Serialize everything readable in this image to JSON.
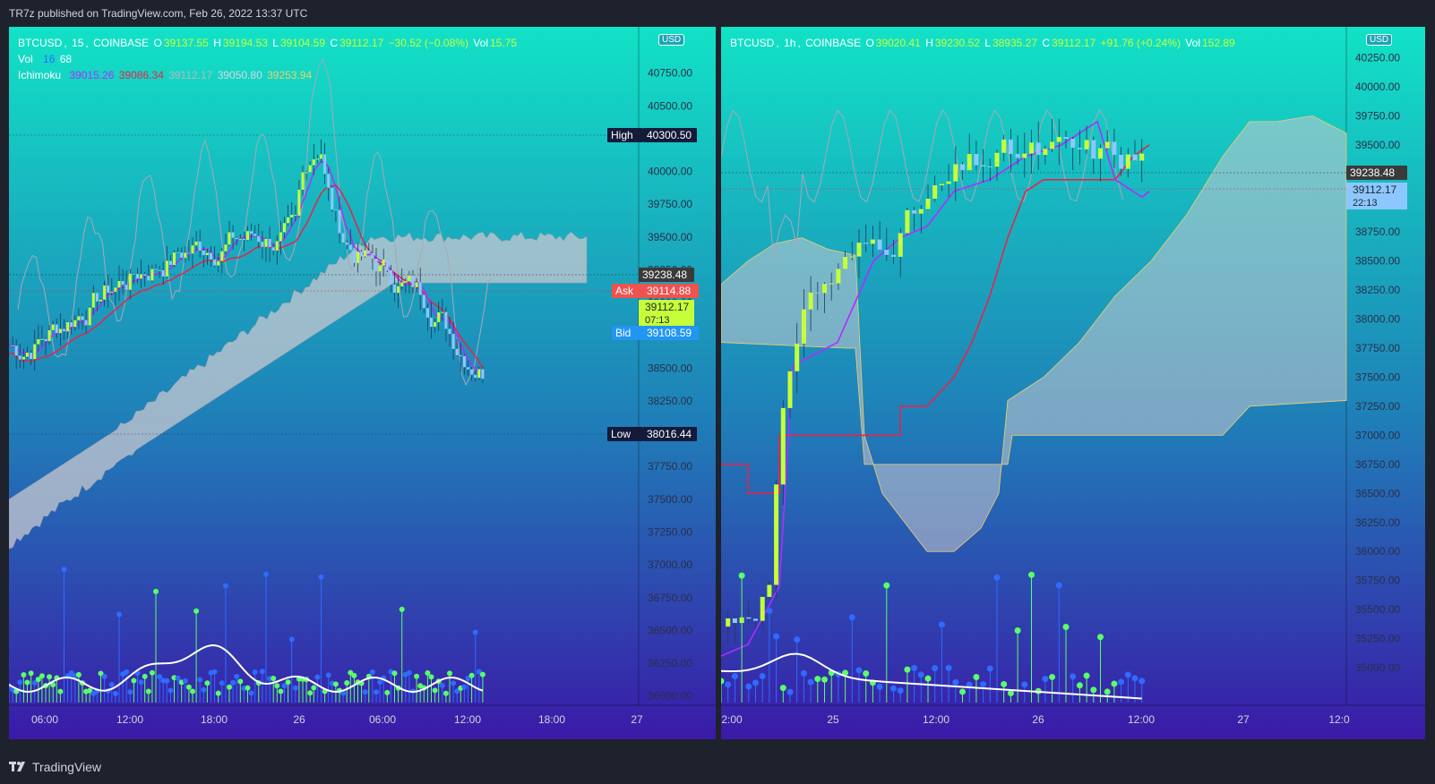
{
  "header": {
    "published": "TR7z published on TradingView.com, Feb 26, 2022 13:37 UTC"
  },
  "footer": {
    "brand": "TradingView",
    "logo_icon": "tradingview-logo-icon"
  },
  "colors": {
    "bg_top": "#12e2c6",
    "bg_bottom": "#3a1aa8",
    "bull": "#c6ff3a",
    "bear": "#8cc8ff",
    "conversion": "#b12cff",
    "base": "#e8234a",
    "lagging": "#a8a8b8",
    "cloud": "#c8c8d0",
    "volume_ma": "#ffffff",
    "vol_green": "#5aff6a",
    "vol_blue": "#2f6bff"
  },
  "left_chart": {
    "symbol": "BTCUSD",
    "interval": "15",
    "exchange": "COINBASE",
    "ohlc": {
      "o_label": "O",
      "o": "39137.55",
      "h_label": "H",
      "h": "39194.53",
      "l_label": "L",
      "l": "39104.59",
      "c_label": "C",
      "c": "39112.17",
      "change": "−30.52 (−0.08%)"
    },
    "vol": {
      "label": "Vol",
      "value": "15.75"
    },
    "vol_indicator": {
      "label": "Vol",
      "p1": "16",
      "p2": "68"
    },
    "ichimoku": {
      "label": "Ichimoku",
      "v1": "39015.26",
      "v2": "39086.34",
      "v3": "39112.17",
      "v4": "39050.80",
      "v5": "39253.94"
    },
    "currency": "USD",
    "price_ticks": [
      "40750.00",
      "40500.00",
      "40250.00",
      "40000.00",
      "39750.00",
      "39500.00",
      "39250.00",
      "39000.00",
      "38750.00",
      "38500.00",
      "38250.00",
      "38000.00",
      "37750.00",
      "37500.00",
      "37250.00",
      "37000.00",
      "36750.00",
      "36500.00",
      "36250.00",
      "36000.00"
    ],
    "time_ticks": [
      "06:00",
      "12:00",
      "18:00",
      "26",
      "06:00",
      "12:00",
      "18:00",
      "27"
    ],
    "markers": {
      "high": {
        "label": "High",
        "value": "40300.50"
      },
      "low": {
        "label": "Low",
        "value": "38016.44"
      },
      "ask": {
        "label": "Ask",
        "value": "39114.88"
      },
      "bid": {
        "label": "Bid",
        "value": "39108.59"
      },
      "last_price": "39238.48",
      "current": {
        "value": "39112.17",
        "countdown": "07:13"
      }
    },
    "y_range": [
      35950,
      41000
    ]
  },
  "right_chart": {
    "symbol": "BTCUSD",
    "interval": "1h",
    "exchange": "COINBASE",
    "ohlc": {
      "o_label": "O",
      "o": "39020.41",
      "h_label": "H",
      "h": "39230.52",
      "l_label": "L",
      "l": "38935.27",
      "c_label": "C",
      "c": "39112.17",
      "change": "+91.76 (+0.24%)"
    },
    "vol": {
      "label": "Vol",
      "value": "152.89"
    },
    "currency": "USD",
    "price_ticks": [
      "40250.00",
      "40000.00",
      "39750.00",
      "39500.00",
      "39250.00",
      "39000.00",
      "38750.00",
      "38500.00",
      "38250.00",
      "38000.00",
      "37750.00",
      "37500.00",
      "37250.00",
      "37000.00",
      "36750.00",
      "36500.00",
      "36250.00",
      "36000.00",
      "35750.00",
      "35500.00",
      "35250.00",
      "35000.00"
    ],
    "time_ticks": [
      "2:00",
      "25",
      "12:00",
      "26",
      "12:00",
      "27",
      "12:0"
    ],
    "markers": {
      "last_price": "39238.48",
      "current": {
        "value": "39112.17",
        "countdown": "22:13"
      }
    },
    "y_range": [
      34700,
      40400
    ]
  }
}
